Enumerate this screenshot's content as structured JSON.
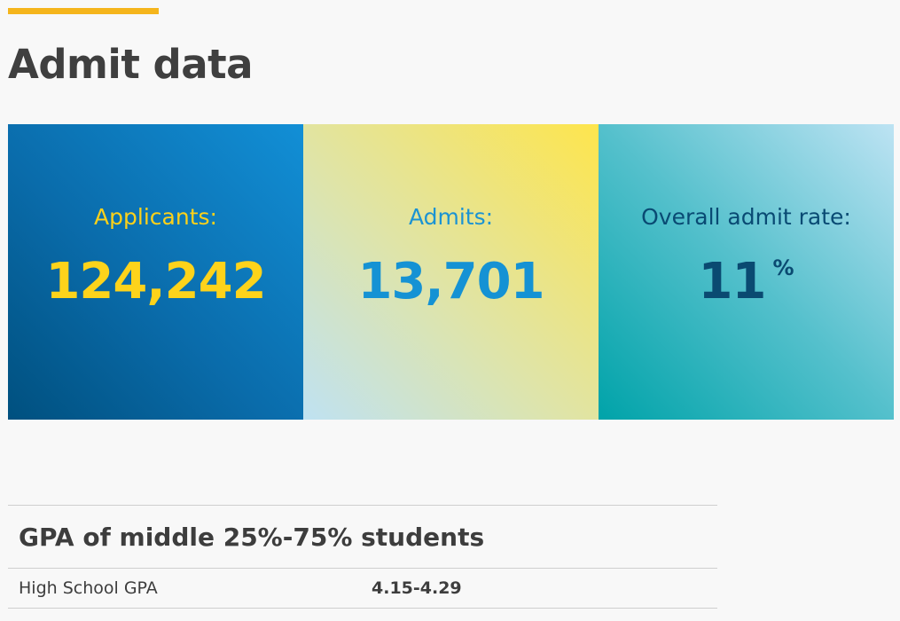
{
  "title": "Admit data",
  "stats": {
    "applicants": {
      "label": "Applicants:",
      "value": "124,242"
    },
    "admits": {
      "label": "Admits:",
      "value": "13,701"
    },
    "admit_rate": {
      "label": "Overall admit rate:",
      "value": "11",
      "unit": "%"
    }
  },
  "gpa_table": {
    "heading": "GPA of middle 25%-75% students",
    "rows": [
      {
        "label": "High School GPA",
        "value": "4.15-4.29"
      }
    ]
  },
  "colors": {
    "accent": "#f5b51c",
    "applicants_bg": "#0a6cab",
    "admits_bg": "#fee54d",
    "rate_bg": "#54c0cc"
  }
}
